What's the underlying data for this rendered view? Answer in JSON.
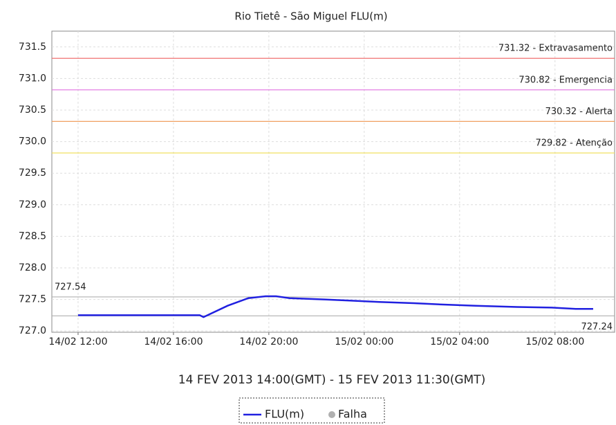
{
  "chart_data": {
    "type": "line",
    "title": "Rio Tietê - São Miguel FLU(m)",
    "x_label": "14 FEV 2013 14:00(GMT) - 15 FEV 2013 11:30(GMT)",
    "x": [
      12,
      13,
      14,
      15,
      16,
      17.1,
      17.26,
      18.27,
      19.14,
      19.86,
      20.3,
      20.87,
      22.32,
      23.47,
      24.63,
      26.08,
      27.23,
      28.68,
      30.41,
      31.86,
      32.87,
      33.6
    ],
    "series": [
      {
        "name": "FLU(m)",
        "color": "#2020e0",
        "values": [
          727.25,
          727.25,
          727.25,
          727.25,
          727.25,
          727.25,
          727.22,
          727.4,
          727.52,
          727.55,
          727.55,
          727.52,
          727.5,
          727.48,
          727.46,
          727.44,
          727.42,
          727.4,
          727.38,
          727.37,
          727.35,
          727.35
        ]
      }
    ],
    "legend_extra": {
      "name": "Falha",
      "color": "#b0b0b0"
    },
    "reference_lines": [
      {
        "value": 731.32,
        "label": "731.32 - Extravasamento",
        "color": "#f07070"
      },
      {
        "value": 730.82,
        "label": "730.82 - Emergencia",
        "color": "#e070e0"
      },
      {
        "value": 730.32,
        "label": "730.32 - Alerta",
        "color": "#f0a060"
      },
      {
        "value": 729.82,
        "label": "729.82 - Atenção",
        "color": "#f0e060"
      },
      {
        "value": 727.54,
        "label": "727.54",
        "color": "#b0b0b0"
      },
      {
        "value": 727.24,
        "label": "727.24",
        "color": "#b0b0b0"
      }
    ],
    "xlim": [
      10.9,
      34.5
    ],
    "xticks": [
      {
        "value": 12,
        "label": "14/02 12:00"
      },
      {
        "value": 16,
        "label": "14/02 16:00"
      },
      {
        "value": 20,
        "label": "14/02 20:00"
      },
      {
        "value": 24,
        "label": "15/02 00:00"
      },
      {
        "value": 28,
        "label": "15/02 04:00"
      },
      {
        "value": 32,
        "label": "15/02 08:00"
      }
    ],
    "ylim": [
      726.98,
      731.75
    ],
    "yticks": [
      {
        "value": 727,
        "label": "727.0"
      },
      727.5,
      {
        "value": 728,
        "label": "728.0"
      },
      728.5,
      {
        "value": 729,
        "label": "729.0"
      },
      729.5,
      {
        "value": 730,
        "label": "730.0"
      },
      730.5,
      {
        "value": 731,
        "label": "731.0"
      },
      731.5
    ],
    "grid": true
  }
}
